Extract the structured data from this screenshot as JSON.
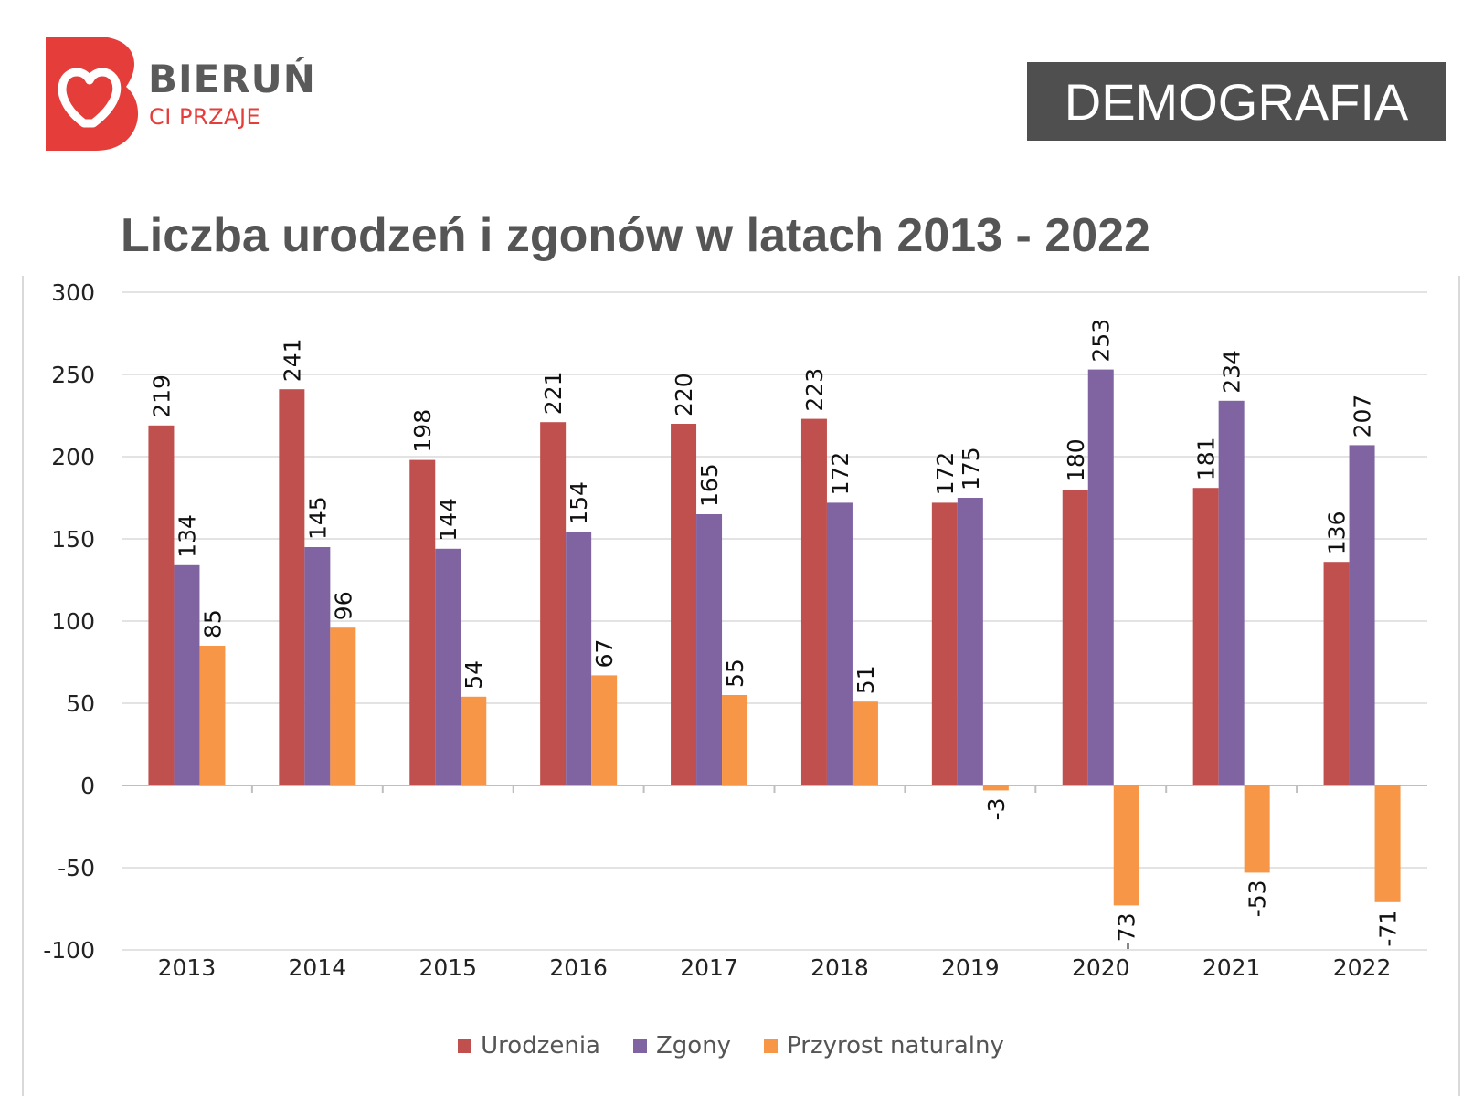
{
  "header": {
    "brand": "BIERUŃ",
    "tagline": "CI PRZAJE",
    "section_label": "DEMOGRAFIA"
  },
  "colors": {
    "brand_red": "#e53d3a",
    "section_box": "#4f4f4f",
    "urodzenia": "#c0504d",
    "zgony": "#8064a2",
    "przyrost": "#f79646"
  },
  "chart_data": {
    "type": "bar",
    "title": "Liczba urodzeń i zgonów w latach 2013 - 2022",
    "xlabel": "",
    "ylabel": "",
    "categories": [
      "2013",
      "2014",
      "2015",
      "2016",
      "2017",
      "2018",
      "2019",
      "2020",
      "2021",
      "2022"
    ],
    "series": [
      {
        "name": "Urodzenia",
        "color": "#c0504d",
        "values": [
          219,
          241,
          198,
          221,
          220,
          223,
          172,
          180,
          181,
          136
        ]
      },
      {
        "name": "Zgony",
        "color": "#8064a2",
        "values": [
          134,
          145,
          144,
          154,
          165,
          172,
          175,
          253,
          234,
          207
        ]
      },
      {
        "name": "Przyrost naturalny",
        "color": "#f79646",
        "values": [
          85,
          96,
          54,
          67,
          55,
          51,
          -3,
          -73,
          -53,
          -71
        ]
      }
    ],
    "ylim": [
      -100,
      300
    ],
    "yticks": [
      300,
      250,
      200,
      150,
      100,
      50,
      0,
      -50,
      -100
    ],
    "grid": true,
    "legend_position": "bottom",
    "data_labels_rotated": true
  }
}
